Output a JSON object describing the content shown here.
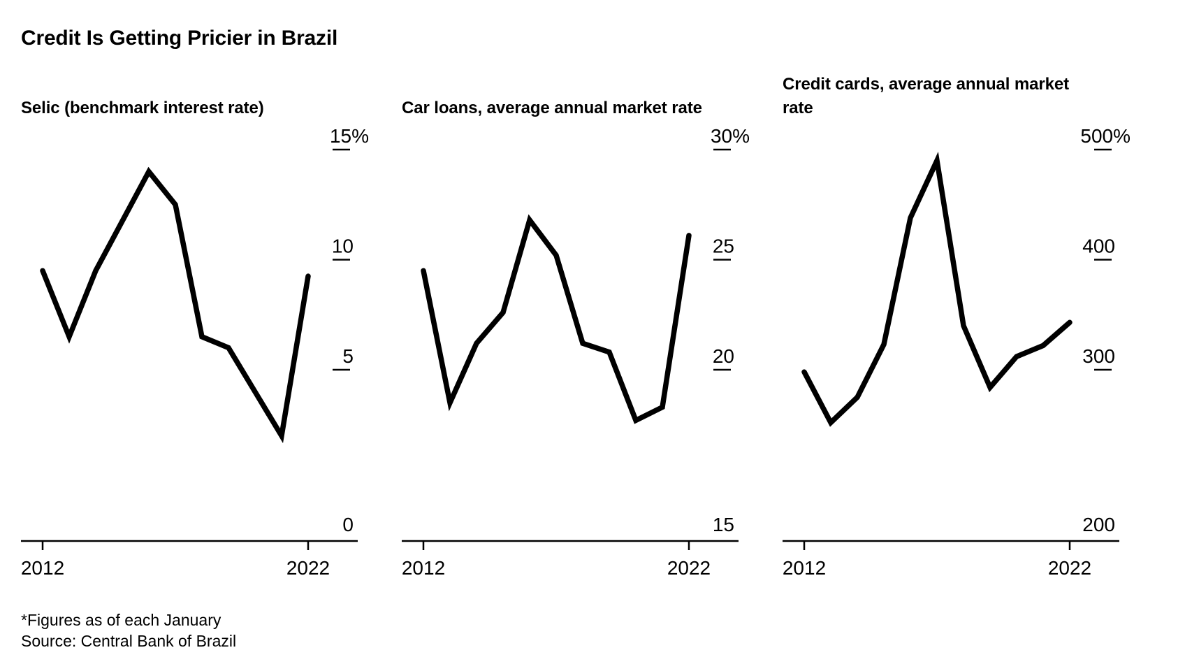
{
  "title": "Credit Is Getting Pricier in Brazil",
  "footnote": "*Figures as of each January",
  "source": "Source: Central Bank of Brazil",
  "colors": {
    "line": "#000000",
    "text": "#000000",
    "axis": "#000000",
    "background": "#ffffff"
  },
  "layout": {
    "legend": "none",
    "gridlines": "none",
    "tick_style": "right-aligned labels above short dashes, bottom label sits on baseline",
    "x_range_label": "2012 to 2022"
  },
  "chart_data": [
    {
      "type": "line",
      "title": "Selic (benchmark interest rate)",
      "unit": "percent",
      "x": [
        2012,
        2013,
        2014,
        2015,
        2016,
        2017,
        2018,
        2019,
        2020,
        2021,
        2022
      ],
      "values": [
        9.5,
        6.5,
        9.5,
        11.75,
        14.0,
        12.5,
        6.5,
        6.0,
        4.0,
        2.0,
        9.25
      ],
      "ylim": [
        0,
        15
      ],
      "yticks": [
        {
          "value": 15,
          "label": "15%"
        },
        {
          "value": 10,
          "label": "10"
        },
        {
          "value": 5,
          "label": "5"
        },
        {
          "value": 0,
          "label": "0"
        }
      ],
      "xticks": [
        {
          "value": 2012,
          "label": "2012"
        },
        {
          "value": 2022,
          "label": "2022"
        }
      ]
    },
    {
      "type": "line",
      "title": "Car loans, average annual market rate",
      "unit": "percent",
      "x": [
        2012,
        2013,
        2014,
        2015,
        2016,
        2017,
        2018,
        2019,
        2020,
        2021,
        2022
      ],
      "values": [
        24.5,
        18.5,
        21.2,
        22.6,
        26.8,
        25.2,
        21.2,
        20.8,
        17.7,
        18.3,
        26.1
      ],
      "ylim": [
        15,
        30
      ],
      "yticks": [
        {
          "value": 30,
          "label": "30%"
        },
        {
          "value": 25,
          "label": "25"
        },
        {
          "value": 20,
          "label": "20"
        },
        {
          "value": 15,
          "label": "15"
        }
      ],
      "xticks": [
        {
          "value": 2012,
          "label": "2012"
        },
        {
          "value": 2022,
          "label": "2022"
        }
      ]
    },
    {
      "type": "line",
      "title": "Credit cards, average annual market rate",
      "unit": "percent",
      "x": [
        2012,
        2013,
        2014,
        2015,
        2016,
        2017,
        2018,
        2019,
        2020,
        2021,
        2022
      ],
      "values": [
        298,
        252,
        275,
        323,
        438,
        490,
        340,
        284,
        312,
        322,
        343
      ],
      "ylim": [
        200,
        500
      ],
      "yticks": [
        {
          "value": 500,
          "label": "500%"
        },
        {
          "value": 400,
          "label": "400"
        },
        {
          "value": 300,
          "label": "300"
        },
        {
          "value": 200,
          "label": "200"
        }
      ],
      "xticks": [
        {
          "value": 2012,
          "label": "2012"
        },
        {
          "value": 2022,
          "label": "2022"
        }
      ]
    }
  ]
}
